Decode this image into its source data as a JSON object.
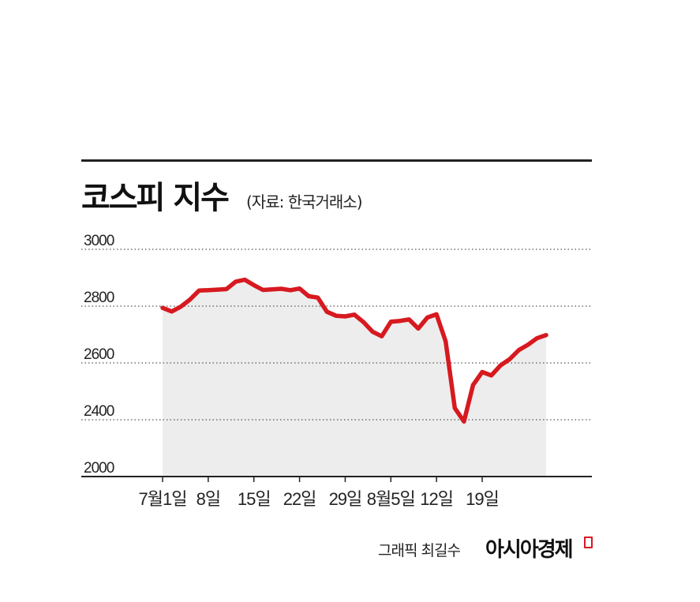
{
  "header": {
    "title": "코스피 지수",
    "source": "(자료: 한국거래소)"
  },
  "footer": {
    "credit": "그래픽 최길수",
    "brand": "아시아경제"
  },
  "colors": {
    "line": "#d71920",
    "area": "#ededed",
    "grid": "#555555",
    "axis": "#222222"
  },
  "chart_data": {
    "type": "area",
    "title": "코스피 지수",
    "xlabel": "",
    "ylabel": "",
    "ylim": [
      2000,
      3000
    ],
    "y_ticks": [
      {
        "value": 3000,
        "label": "3000"
      },
      {
        "value": 2800,
        "label": "2800"
      },
      {
        "value": 2600,
        "label": "2600"
      },
      {
        "value": 2400,
        "label": "2400"
      },
      {
        "value": 2000,
        "label": "2000"
      }
    ],
    "x_ticks": [
      {
        "index": 0,
        "label": "7월1일"
      },
      {
        "index": 5,
        "label": "8일"
      },
      {
        "index": 10,
        "label": "15일"
      },
      {
        "index": 15,
        "label": "22일"
      },
      {
        "index": 20,
        "label": "29일"
      },
      {
        "index": 25,
        "label": "8월5일"
      },
      {
        "index": 30,
        "label": "12일"
      },
      {
        "index": 35,
        "label": "19일"
      }
    ],
    "grid": "dotted horizontal",
    "series": [
      {
        "values": [
          2794,
          2781,
          2798,
          2823,
          2855,
          2856,
          2858,
          2860,
          2886,
          2893,
          2874,
          2857,
          2859,
          2861,
          2856,
          2862,
          2835,
          2830,
          2780,
          2766,
          2764,
          2770,
          2744,
          2710,
          2694,
          2745,
          2748,
          2753,
          2721,
          2760,
          2771,
          2676,
          2441,
          2388,
          2522,
          2568,
          2556,
          2591,
          2613,
          2645,
          2664,
          2687,
          2698
        ]
      }
    ]
  }
}
